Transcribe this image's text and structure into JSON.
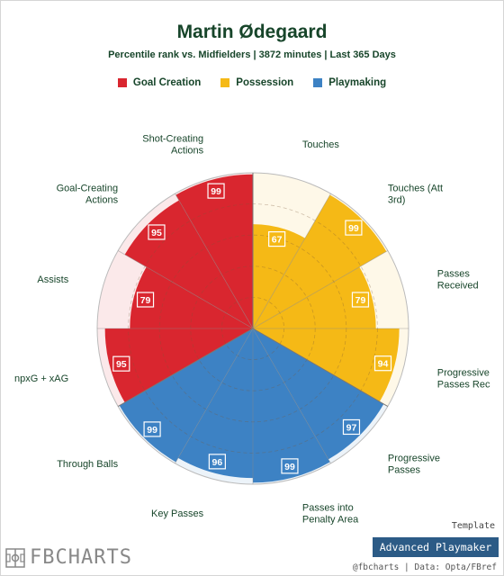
{
  "header": {
    "title": "Martin Ødegaard",
    "subtitle": "Percentile rank vs. Midfielders | 3872 minutes | Last 365 Days"
  },
  "legend": [
    {
      "label": "Goal Creation",
      "color": "#d9262f"
    },
    {
      "label": "Possession",
      "color": "#f5b916"
    },
    {
      "label": "Playmaking",
      "color": "#3d82c4"
    }
  ],
  "chart_data": {
    "type": "polar-bar",
    "categories": [
      "Touches",
      "Touches (Att 3rd)",
      "Passes Received",
      "Progressive Passes Rec",
      "Progressive Passes",
      "Passes into Penalty Area",
      "Key Passes",
      "Through Balls",
      "npxG + xAG",
      "Assists",
      "Goal-Creating Actions",
      "Shot-Creating Actions"
    ],
    "groups": [
      "Possession",
      "Possession",
      "Possession",
      "Possession",
      "Playmaking",
      "Playmaking",
      "Playmaking",
      "Playmaking",
      "Goal Creation",
      "Goal Creation",
      "Goal Creation",
      "Goal Creation"
    ],
    "values": [
      67,
      99,
      79,
      94,
      97,
      99,
      96,
      99,
      95,
      79,
      95,
      99
    ],
    "rlim": [
      0,
      100
    ],
    "group_colors": {
      "Goal Creation": "#d9262f",
      "Possession": "#f5b916",
      "Playmaking": "#3d82c4"
    }
  },
  "footer": {
    "template_label": "Template",
    "template_name": "Advanced Playmaker",
    "credit": "@fbcharts | Data: Opta/FBref",
    "logo_text": "FBCHARTS"
  }
}
